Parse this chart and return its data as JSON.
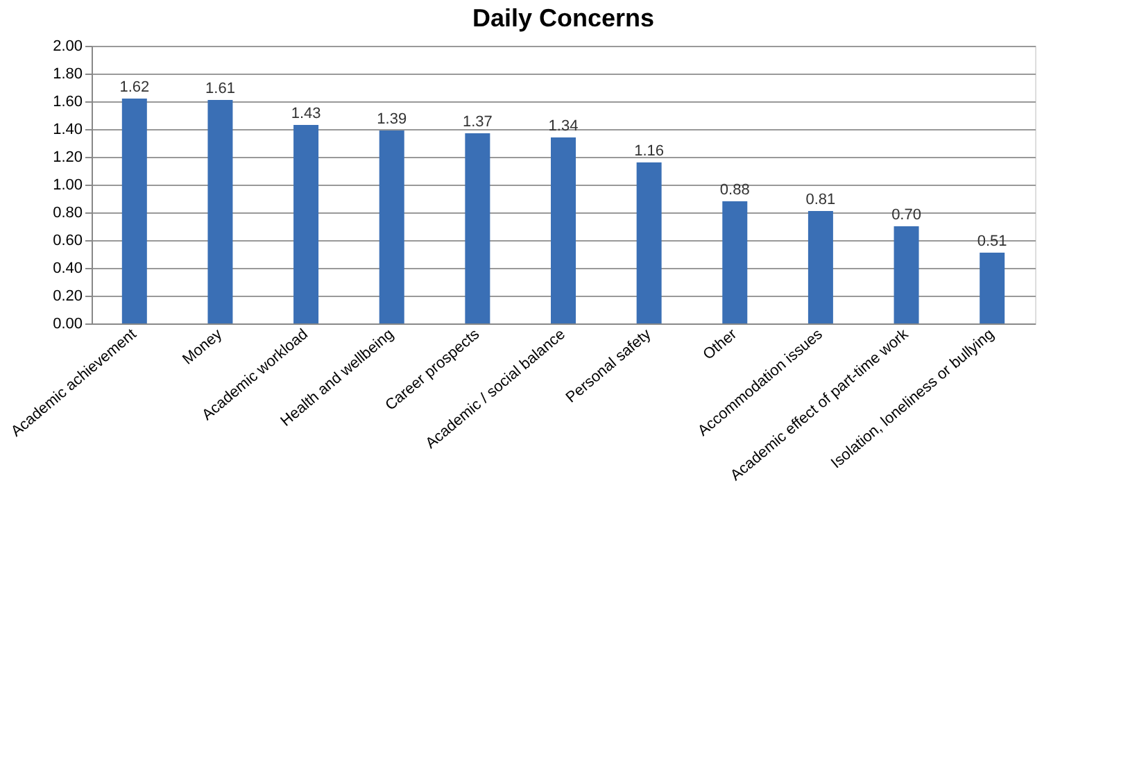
{
  "chart_data": {
    "type": "bar",
    "title": "Daily Concerns",
    "categories": [
      "Academic achievement",
      "Money",
      "Academic workload",
      "Health and wellbeing",
      "Career prospects",
      "Academic / social balance",
      "Personal safety",
      "Other",
      "Accommodation issues",
      "Academic effect of part-time work",
      "Isolation, loneliness or bullying"
    ],
    "values": [
      1.62,
      1.61,
      1.43,
      1.39,
      1.37,
      1.34,
      1.16,
      0.88,
      0.81,
      0.7,
      0.51
    ],
    "value_labels": [
      "1.62",
      "1.61",
      "1.43",
      "1.39",
      "1.37",
      "1.34",
      "1.16",
      "0.88",
      "0.81",
      "0.70",
      "0.51"
    ],
    "color": "#3a6fb5",
    "ylim": [
      0,
      2
    ],
    "yticks": [
      {
        "value": 0,
        "label": "0.00"
      },
      {
        "value": 0.2,
        "label": "0.20"
      },
      {
        "value": 0.4,
        "label": "0.40"
      },
      {
        "value": 0.6,
        "label": "0.60"
      },
      {
        "value": 0.8,
        "label": "0.80"
      },
      {
        "value": 1.0,
        "label": "1.00"
      },
      {
        "value": 1.2,
        "label": "1.20"
      },
      {
        "value": 1.4,
        "label": "1.40"
      },
      {
        "value": 1.6,
        "label": "1.60"
      },
      {
        "value": 1.8,
        "label": "1.80"
      },
      {
        "value": 2.0,
        "label": "2.00"
      }
    ],
    "grid": "y"
  }
}
